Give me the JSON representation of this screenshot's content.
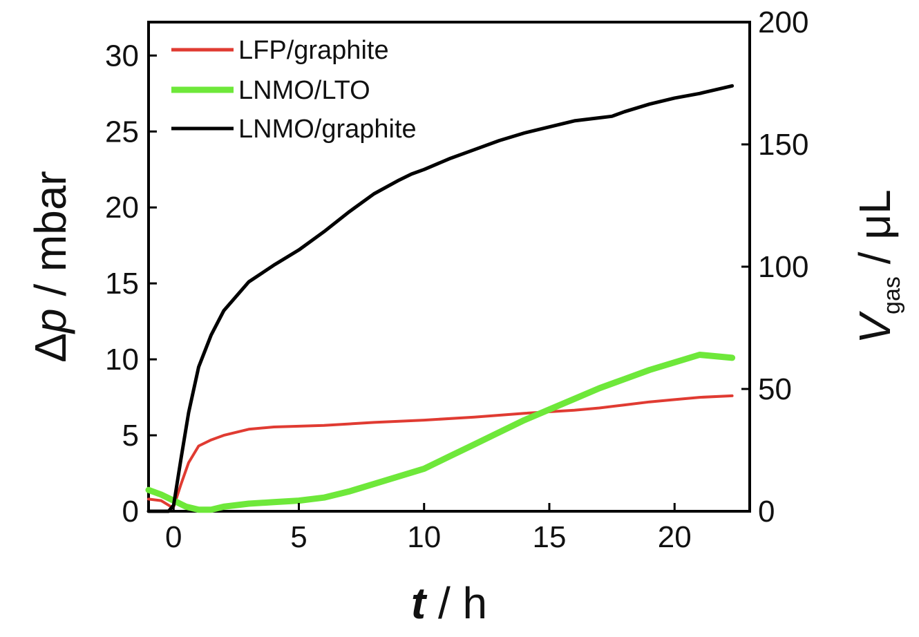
{
  "chart_data": {
    "type": "line",
    "xlabel": {
      "var": "t",
      "unit": "h"
    },
    "ylabel": {
      "var": "Δp",
      "unit": "mbar"
    },
    "y2label": {
      "var": "V",
      "sub": "gas",
      "unit": "μL"
    },
    "xlim": [
      -1,
      23
    ],
    "ylim": [
      0,
      32.2
    ],
    "y2lim": [
      0,
      200
    ],
    "xticks": [
      0,
      5,
      10,
      15,
      20
    ],
    "yticks": [
      0,
      5,
      10,
      15,
      20,
      25,
      30
    ],
    "y2ticks": [
      0,
      50,
      100,
      150,
      200
    ],
    "legend_position": "top-left",
    "grid": false,
    "series": [
      {
        "name": "LFP/graphite",
        "color": "#e03b32",
        "width": 4,
        "points": [
          [
            -1,
            0.8
          ],
          [
            -0.5,
            0.7
          ],
          [
            -0.1,
            0.3
          ],
          [
            0,
            0.3
          ],
          [
            0.3,
            1.8
          ],
          [
            0.6,
            3.2
          ],
          [
            1,
            4.3
          ],
          [
            1.5,
            4.7
          ],
          [
            2,
            5.0
          ],
          [
            3,
            5.4
          ],
          [
            4,
            5.55
          ],
          [
            5,
            5.6
          ],
          [
            6,
            5.65
          ],
          [
            8,
            5.85
          ],
          [
            10,
            6.0
          ],
          [
            12,
            6.2
          ],
          [
            14,
            6.45
          ],
          [
            16,
            6.65
          ],
          [
            17,
            6.8
          ],
          [
            18,
            7.0
          ],
          [
            19,
            7.2
          ],
          [
            20,
            7.35
          ],
          [
            21,
            7.5
          ],
          [
            22.3,
            7.6
          ]
        ]
      },
      {
        "name": "LNMO/LTO",
        "color": "#6ee83a",
        "width": 9,
        "points": [
          [
            -1,
            1.4
          ],
          [
            -0.5,
            1.1
          ],
          [
            0,
            0.7
          ],
          [
            0.5,
            0.3
          ],
          [
            1,
            0.1
          ],
          [
            1.5,
            0.1
          ],
          [
            2,
            0.3
          ],
          [
            3,
            0.5
          ],
          [
            4,
            0.6
          ],
          [
            5,
            0.7
          ],
          [
            6,
            0.9
          ],
          [
            7,
            1.3
          ],
          [
            8,
            1.8
          ],
          [
            9,
            2.3
          ],
          [
            10,
            2.8
          ],
          [
            11,
            3.6
          ],
          [
            12,
            4.4
          ],
          [
            13,
            5.2
          ],
          [
            14,
            6.0
          ],
          [
            15,
            6.7
          ],
          [
            16,
            7.4
          ],
          [
            17,
            8.1
          ],
          [
            18,
            8.7
          ],
          [
            19,
            9.3
          ],
          [
            20,
            9.8
          ],
          [
            21,
            10.3
          ],
          [
            22.3,
            10.1
          ]
        ]
      },
      {
        "name": "LNMO/graphite",
        "color": "#000000",
        "width": 5,
        "points": [
          [
            -1,
            0
          ],
          [
            -0.2,
            0
          ],
          [
            0,
            0.4
          ],
          [
            0.3,
            3.5
          ],
          [
            0.6,
            6.5
          ],
          [
            1,
            9.5
          ],
          [
            1.5,
            11.6
          ],
          [
            2,
            13.2
          ],
          [
            3,
            15.1
          ],
          [
            4,
            16.2
          ],
          [
            5,
            17.2
          ],
          [
            6,
            18.4
          ],
          [
            7,
            19.7
          ],
          [
            8,
            20.9
          ],
          [
            9,
            21.8
          ],
          [
            9.5,
            22.2
          ],
          [
            10,
            22.5
          ],
          [
            11,
            23.2
          ],
          [
            12,
            23.8
          ],
          [
            13,
            24.4
          ],
          [
            14,
            24.9
          ],
          [
            15,
            25.3
          ],
          [
            16,
            25.7
          ],
          [
            17,
            25.9
          ],
          [
            17.5,
            26.0
          ],
          [
            18,
            26.3
          ],
          [
            19,
            26.8
          ],
          [
            20,
            27.2
          ],
          [
            21,
            27.5
          ],
          [
            22.3,
            28.0
          ]
        ]
      }
    ]
  }
}
